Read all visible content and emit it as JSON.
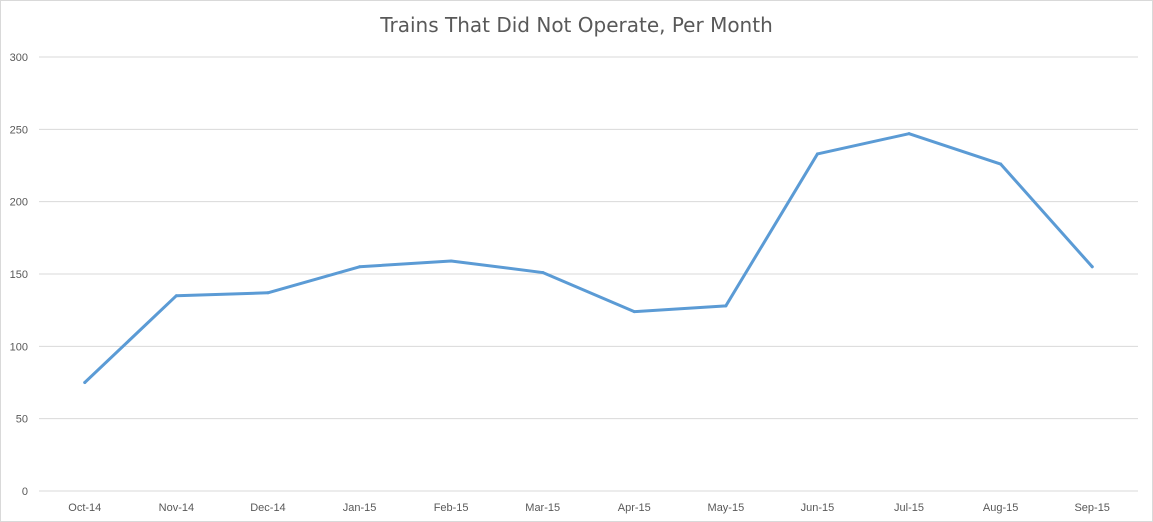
{
  "chart_data": {
    "type": "line",
    "title": "Trains That Did Not Operate, Per Month",
    "xlabel": "",
    "ylabel": "",
    "categories": [
      "Oct-14",
      "Nov-14",
      "Dec-14",
      "Jan-15",
      "Feb-15",
      "Mar-15",
      "Apr-15",
      "May-15",
      "Jun-15",
      "Jul-15",
      "Aug-15",
      "Sep-15"
    ],
    "series": [
      {
        "values": [
          75,
          135,
          137,
          155,
          159,
          151,
          124,
          128,
          233,
          247,
          226,
          155
        ],
        "color": "#5b9bd5"
      }
    ],
    "ylim": [
      0,
      300
    ],
    "yticks": [
      0,
      50,
      100,
      150,
      200,
      250,
      300
    ],
    "grid": true,
    "legend": "none"
  }
}
